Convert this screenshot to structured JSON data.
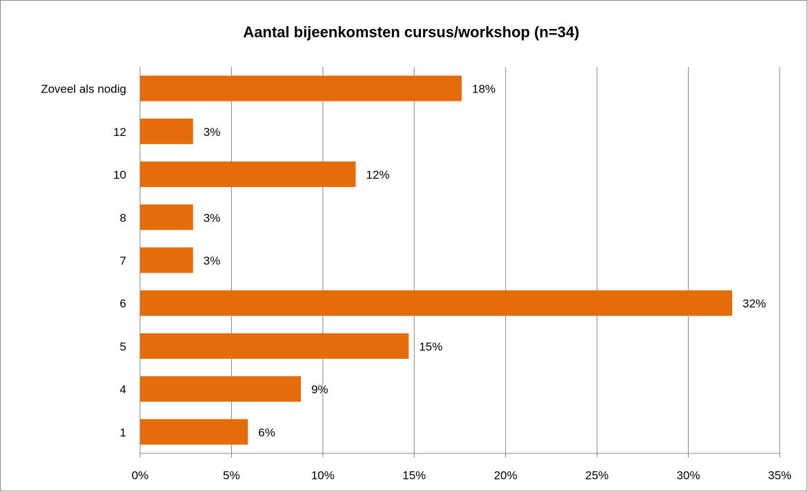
{
  "chart_data": {
    "type": "bar",
    "orientation": "horizontal",
    "title": "Aantal bijeenkomsten cursus/workshop (n=34)",
    "categories": [
      "Zoveel als nodig",
      "12",
      "10",
      "8",
      "7",
      "6",
      "5",
      "4",
      "1"
    ],
    "values": [
      17.6,
      2.9,
      11.8,
      2.9,
      2.9,
      32.4,
      14.7,
      8.8,
      5.9
    ],
    "value_labels": [
      "18%",
      "3%",
      "12%",
      "3%",
      "3%",
      "32%",
      "15%",
      "9%",
      "6%"
    ],
    "color": "#e46c0a",
    "xlim": [
      0,
      35
    ],
    "xticks": [
      {
        "value": 0,
        "label": "0%"
      },
      {
        "value": 5,
        "label": "5%"
      },
      {
        "value": 10,
        "label": "10%"
      },
      {
        "value": 15,
        "label": "15%"
      },
      {
        "value": 20,
        "label": "20%"
      },
      {
        "value": 25,
        "label": "25%"
      },
      {
        "value": 30,
        "label": "30%"
      },
      {
        "value": 35,
        "label": "35%"
      }
    ],
    "grid": true
  }
}
